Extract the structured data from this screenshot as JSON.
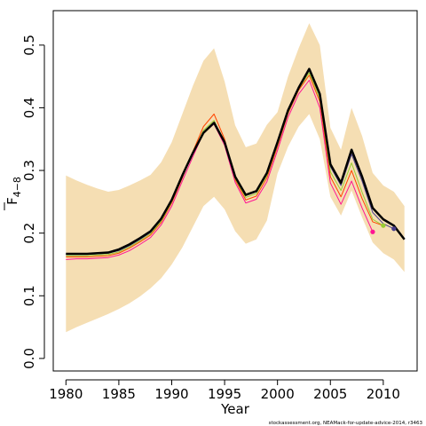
{
  "chart_data": {
    "type": "line",
    "title": "",
    "xlabel": "Year",
    "ylabel": "F",
    "ylabel_subscript": "4−8",
    "credit": "stockassessment.org, NEAMack-for-update-advice-2014, r3463",
    "xlim": [
      1978.8,
      2013.2
    ],
    "ylim": [
      -0.02,
      0.555
    ],
    "x_ticks": [
      1980,
      1985,
      1990,
      1995,
      2000,
      2005,
      2010
    ],
    "y_ticks": [
      0.0,
      0.1,
      0.2,
      0.3,
      0.4,
      0.5
    ],
    "x_tick_labels": [
      "1980",
      "1985",
      "1990",
      "1995",
      "2000",
      "2005",
      "2010"
    ],
    "y_tick_labels": [
      "0.0",
      "0.1",
      "0.2",
      "0.3",
      "0.4",
      "0.5"
    ],
    "colors": {
      "band": "#f5deb3",
      "main": "#000000",
      "retro": [
        "#ff1493",
        "#ff4500",
        "#9acd32",
        "#483d8b"
      ]
    },
    "band": {
      "x": [
        1980,
        1981,
        1982,
        1983,
        1984,
        1985,
        1986,
        1987,
        1988,
        1989,
        1990,
        1991,
        1992,
        1993,
        1994,
        1995,
        1996,
        1997,
        1998,
        1999,
        2000,
        2001,
        2002,
        2003,
        2004,
        2005,
        2006,
        2007,
        2008,
        2009,
        2010,
        2011,
        2012
      ],
      "lower": [
        0.042,
        0.05,
        0.057,
        0.064,
        0.071,
        0.079,
        0.088,
        0.099,
        0.112,
        0.128,
        0.15,
        0.177,
        0.21,
        0.243,
        0.258,
        0.238,
        0.203,
        0.183,
        0.19,
        0.22,
        0.295,
        0.338,
        0.37,
        0.39,
        0.35,
        0.258,
        0.228,
        0.268,
        0.225,
        0.185,
        0.168,
        0.158,
        0.138
      ],
      "upper": [
        0.292,
        0.284,
        0.277,
        0.271,
        0.266,
        0.269,
        0.276,
        0.284,
        0.293,
        0.313,
        0.345,
        0.39,
        0.435,
        0.475,
        0.495,
        0.442,
        0.372,
        0.337,
        0.343,
        0.373,
        0.393,
        0.45,
        0.495,
        0.535,
        0.5,
        0.368,
        0.333,
        0.4,
        0.355,
        0.296,
        0.276,
        0.266,
        0.243
      ]
    },
    "series": [
      {
        "name": "",
        "role": "main",
        "x": [
          1980,
          1981,
          1982,
          1983,
          1984,
          1985,
          1986,
          1987,
          1988,
          1989,
          1990,
          1991,
          1992,
          1993,
          1994,
          1995,
          1996,
          1997,
          1998,
          1999,
          2000,
          2001,
          2002,
          2003,
          2004,
          2005,
          2006,
          2007,
          2008,
          2009,
          2010,
          2011,
          2012
        ],
        "y": [
          0.167,
          0.167,
          0.167,
          0.168,
          0.169,
          0.174,
          0.182,
          0.192,
          0.203,
          0.223,
          0.253,
          0.292,
          0.328,
          0.36,
          0.376,
          0.345,
          0.29,
          0.261,
          0.267,
          0.296,
          0.345,
          0.396,
          0.432,
          0.462,
          0.422,
          0.31,
          0.28,
          0.333,
          0.29,
          0.24,
          0.222,
          0.212,
          0.19
        ]
      },
      {
        "name": "",
        "role": "retro",
        "x": [
          1980,
          1981,
          1982,
          1983,
          1984,
          1985,
          1986,
          1987,
          1988,
          1989,
          1990,
          1991,
          1992,
          1993,
          1994,
          1995,
          1996,
          1997,
          1998,
          1999,
          2000,
          2001,
          2002,
          2003,
          2004,
          2005,
          2006,
          2007,
          2008,
          2009
        ],
        "y": [
          0.158,
          0.159,
          0.159,
          0.16,
          0.161,
          0.165,
          0.172,
          0.182,
          0.193,
          0.213,
          0.243,
          0.283,
          0.322,
          0.36,
          0.374,
          0.34,
          0.281,
          0.248,
          0.254,
          0.282,
          0.332,
          0.385,
          0.422,
          0.444,
          0.4,
          0.28,
          0.246,
          0.283,
          0.24,
          0.202
        ]
      },
      {
        "name": "",
        "role": "retro",
        "x": [
          1980,
          1981,
          1982,
          1983,
          1984,
          1985,
          1986,
          1987,
          1988,
          1989,
          1990,
          1991,
          1992,
          1993,
          1994,
          1995,
          1996,
          1997,
          1998,
          1999,
          2000,
          2001,
          2002,
          2003,
          2004,
          2005,
          2006,
          2007,
          2008,
          2009,
          2010
        ],
        "y": [
          0.162,
          0.162,
          0.162,
          0.163,
          0.164,
          0.168,
          0.176,
          0.186,
          0.197,
          0.217,
          0.248,
          0.288,
          0.33,
          0.37,
          0.39,
          0.35,
          0.285,
          0.253,
          0.259,
          0.288,
          0.338,
          0.391,
          0.428,
          0.452,
          0.41,
          0.29,
          0.258,
          0.3,
          0.255,
          0.218,
          0.212
        ]
      },
      {
        "name": "",
        "role": "retro",
        "x": [
          1980,
          1981,
          1982,
          1983,
          1984,
          1985,
          1986,
          1987,
          1988,
          1989,
          1990,
          1991,
          1992,
          1993,
          1994,
          1995,
          1996,
          1997,
          1998,
          1999,
          2000,
          2001,
          2002,
          2003,
          2004,
          2005,
          2006,
          2007,
          2008,
          2009,
          2010
        ],
        "y": [
          0.164,
          0.164,
          0.164,
          0.165,
          0.166,
          0.17,
          0.178,
          0.188,
          0.199,
          0.219,
          0.25,
          0.29,
          0.327,
          0.364,
          0.38,
          0.344,
          0.287,
          0.257,
          0.263,
          0.292,
          0.341,
          0.393,
          0.43,
          0.456,
          0.415,
          0.298,
          0.268,
          0.312,
          0.265,
          0.222,
          0.212
        ]
      },
      {
        "name": "",
        "role": "retro",
        "x": [
          1980,
          1981,
          1982,
          1983,
          1984,
          1985,
          1986,
          1987,
          1988,
          1989,
          1990,
          1991,
          1992,
          1993,
          1994,
          1995,
          1996,
          1997,
          1998,
          1999,
          2000,
          2001,
          2002,
          2003,
          2004,
          2005,
          2006,
          2007,
          2008,
          2009,
          2010,
          2011
        ],
        "y": [
          0.166,
          0.166,
          0.166,
          0.167,
          0.168,
          0.172,
          0.18,
          0.19,
          0.201,
          0.221,
          0.252,
          0.291,
          0.327,
          0.361,
          0.377,
          0.345,
          0.289,
          0.26,
          0.266,
          0.295,
          0.344,
          0.395,
          0.431,
          0.46,
          0.42,
          0.306,
          0.276,
          0.326,
          0.283,
          0.233,
          0.215,
          0.207
        ]
      }
    ],
    "endpoints": [
      {
        "x": 2009,
        "y": 0.202,
        "color": "#ff1493"
      },
      {
        "x": 2010,
        "y": 0.212,
        "color": "#9acd32"
      },
      {
        "x": 2011,
        "y": 0.207,
        "color": "#483d8b"
      }
    ]
  }
}
